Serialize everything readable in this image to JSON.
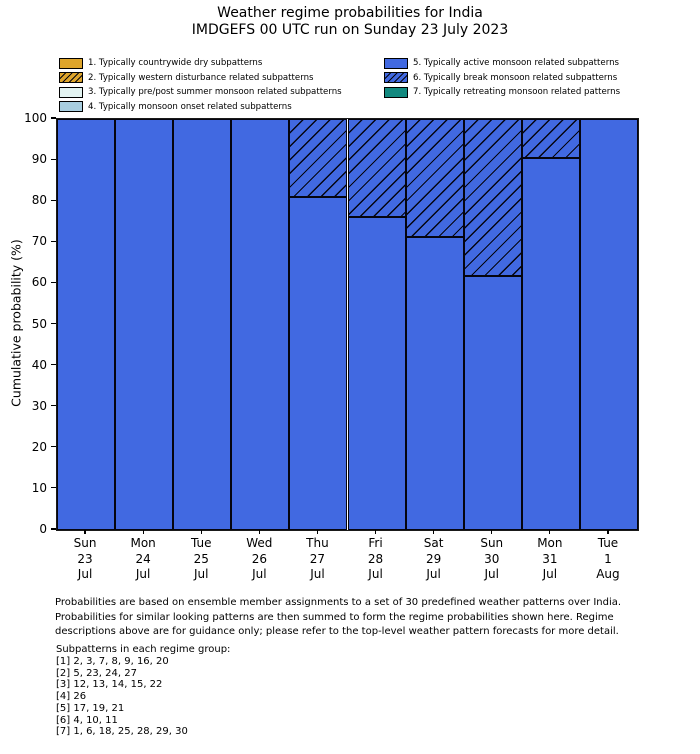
{
  "title": "Weather regime probabilities for India",
  "subtitle": "IMDGEFS 00 UTC run on Sunday 23 July 2023",
  "colors": {
    "regime1_dry": "#DEA52B",
    "regime2_western_disturbance": "#DEA52B",
    "regime3_prepost_summer": "#E3F4F2",
    "regime4_onset": "#A8CEE0",
    "regime5_active": "#4169E1",
    "regime6_break": "#4169E1",
    "regime7_retreating": "#12897F",
    "bar_edge": "#05050f",
    "background": "#ffffff"
  },
  "legend": {
    "items": [
      {
        "label": "1. Typically countrywide dry subpatterns",
        "color": "#DEA52B",
        "hatch": false
      },
      {
        "label": "2. Typically western disturbance related subpatterns",
        "color": "#DEA52B",
        "hatch": true
      },
      {
        "label": "3. Typically pre/post summer monsoon related subpatterns",
        "color": "#E3F4F2",
        "hatch": false
      },
      {
        "label": "4. Typically monsoon onset related subpatterns",
        "color": "#A8CEE0",
        "hatch": false
      },
      {
        "label": "5. Typically active monsoon related subpatterns",
        "color": "#4169E1",
        "hatch": false
      },
      {
        "label": "6. Typically break monsoon related subpatterns",
        "color": "#4169E1",
        "hatch": true
      },
      {
        "label": "7. Typically retreating monsoon related patterns",
        "color": "#12897F",
        "hatch": false
      }
    ]
  },
  "chart_data": {
    "type": "bar",
    "stacked": true,
    "grid": false,
    "bar_gap": 0,
    "legend_position": "above plot, two columns, frameless",
    "title": "Weather regime probabilities for India",
    "subtitle": "IMDGEFS 00 UTC run on Sunday 23 July 2023",
    "xlabel": "",
    "ylabel": "Cumulative probability (%)",
    "ylim": [
      0,
      100
    ],
    "yticks": [
      0,
      10,
      20,
      30,
      40,
      50,
      60,
      70,
      80,
      90,
      100
    ],
    "categories": [
      {
        "day": "Sun",
        "date": "23",
        "month": "Jul"
      },
      {
        "day": "Mon",
        "date": "24",
        "month": "Jul"
      },
      {
        "day": "Tue",
        "date": "25",
        "month": "Jul"
      },
      {
        "day": "Wed",
        "date": "26",
        "month": "Jul"
      },
      {
        "day": "Thu",
        "date": "27",
        "month": "Jul"
      },
      {
        "day": "Fri",
        "date": "28",
        "month": "Jul"
      },
      {
        "day": "Sat",
        "date": "29",
        "month": "Jul"
      },
      {
        "day": "Sun",
        "date": "30",
        "month": "Jul"
      },
      {
        "day": "Mon",
        "date": "31",
        "month": "Jul"
      },
      {
        "day": "Tue",
        "date": "1",
        "month": "Aug"
      }
    ],
    "series": [
      {
        "name": "1. Typically countrywide dry subpatterns",
        "color": "#DEA52B",
        "hatch": false,
        "values": [
          0,
          0,
          0,
          0,
          0,
          0,
          0,
          0,
          0,
          0
        ]
      },
      {
        "name": "2. Typically western disturbance related subpatterns",
        "color": "#DEA52B",
        "hatch": true,
        "values": [
          0,
          0,
          0,
          0,
          0,
          0,
          0,
          0,
          0,
          0
        ]
      },
      {
        "name": "3. Typically pre/post summer monsoon related subpatterns",
        "color": "#E3F4F2",
        "hatch": false,
        "values": [
          0,
          0,
          0,
          0,
          0,
          0,
          0,
          0,
          0,
          0
        ]
      },
      {
        "name": "4. Typically monsoon onset related subpatterns",
        "color": "#A8CEE0",
        "hatch": false,
        "values": [
          0,
          0,
          0,
          0,
          0,
          0,
          0,
          0,
          0,
          0
        ]
      },
      {
        "name": "5. Typically active monsoon related subpatterns",
        "color": "#4169E1",
        "hatch": false,
        "values": [
          100,
          100,
          100,
          100,
          81,
          76.2,
          71.4,
          61.9,
          90.5,
          100
        ]
      },
      {
        "name": "6. Typically break monsoon related subpatterns",
        "color": "#4169E1",
        "hatch": true,
        "values": [
          0,
          0,
          0,
          0,
          19,
          23.8,
          28.6,
          38.1,
          9.5,
          0
        ]
      },
      {
        "name": "7. Typically retreating monsoon related patterns",
        "color": "#12897F",
        "hatch": false,
        "values": [
          0,
          0,
          0,
          0,
          0,
          0,
          0,
          0,
          0,
          0
        ]
      }
    ]
  },
  "footnote": {
    "lines": [
      "Probabilities are based on ensemble member assignments to a set of 30 predefined weather patterns over India.",
      "Probabilities for similar looking patterns are then summed to form the regime probabilities shown here. Regime",
      "descriptions above are for guidance only; please refer to the top-level weather pattern forecasts for more detail."
    ]
  },
  "subpatterns": {
    "heading": "Subpatterns in each regime group:",
    "groups": [
      "[1] 2, 3, 7, 8, 9, 16, 20",
      "[2] 5, 23, 24, 27",
      "[3] 12, 13, 14, 15, 22",
      "[4] 26",
      "[5] 17, 19, 21",
      "[6] 4, 10, 11",
      "[7] 1, 6, 18, 25, 28, 29, 30"
    ]
  }
}
